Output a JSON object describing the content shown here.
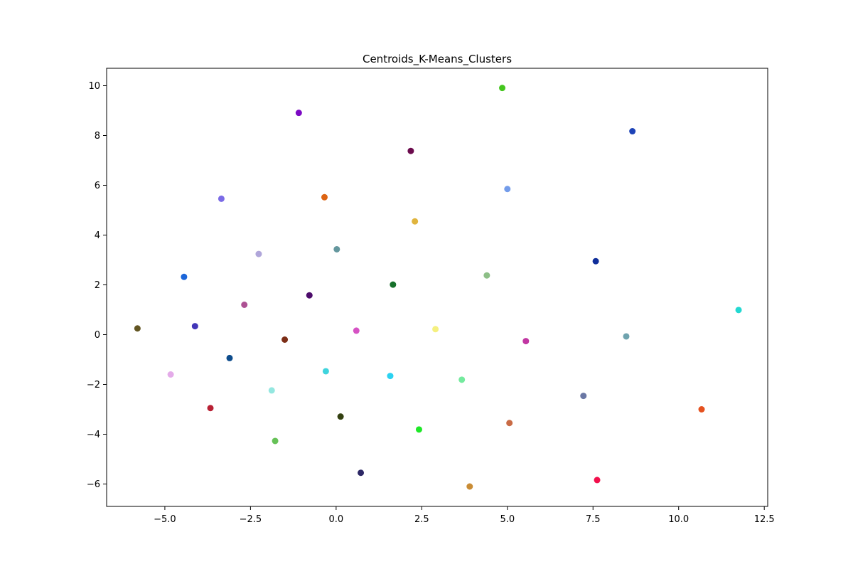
{
  "chart_data": {
    "type": "scatter",
    "title": "Centroids_K-Means_Clusters",
    "xlabel": "",
    "ylabel": "",
    "xlim": [
      -6.7,
      12.6
    ],
    "ylim": [
      -6.9,
      10.7
    ],
    "grid": false,
    "legend": "none",
    "xticks": [
      {
        "value": -5.0,
        "label": "−5.0"
      },
      {
        "value": -2.5,
        "label": "−2.5"
      },
      {
        "value": 0.0,
        "label": "0.0"
      },
      {
        "value": 2.5,
        "label": "2.5"
      },
      {
        "value": 5.0,
        "label": "5.0"
      },
      {
        "value": 7.5,
        "label": "7.5"
      },
      {
        "value": 10.0,
        "label": "10.0"
      },
      {
        "value": 12.5,
        "label": "12.5"
      }
    ],
    "yticks": [
      {
        "value": -6,
        "label": "−6"
      },
      {
        "value": -4,
        "label": "−4"
      },
      {
        "value": -2,
        "label": "−2"
      },
      {
        "value": 0,
        "label": "0"
      },
      {
        "value": 2,
        "label": "2"
      },
      {
        "value": 4,
        "label": "4"
      },
      {
        "value": 6,
        "label": "6"
      },
      {
        "value": 8,
        "label": "8"
      },
      {
        "value": 10,
        "label": "10"
      }
    ],
    "points": [
      {
        "x": 4.85,
        "y": 9.91,
        "color": "#44c61e"
      },
      {
        "x": -1.09,
        "y": 8.91,
        "color": "#7c09c4"
      },
      {
        "x": 8.65,
        "y": 8.17,
        "color": "#1d43b7"
      },
      {
        "x": 2.18,
        "y": 7.38,
        "color": "#6b0b4d"
      },
      {
        "x": 5.0,
        "y": 5.85,
        "color": "#739cea"
      },
      {
        "x": -3.35,
        "y": 5.46,
        "color": "#7b6be6"
      },
      {
        "x": -0.34,
        "y": 5.52,
        "color": "#dd6413"
      },
      {
        "x": 2.3,
        "y": 4.55,
        "color": "#e0b43d"
      },
      {
        "x": 0.02,
        "y": 3.43,
        "color": "#64979e"
      },
      {
        "x": -2.26,
        "y": 3.24,
        "color": "#b0a6da"
      },
      {
        "x": 7.58,
        "y": 2.95,
        "color": "#0f2e9a"
      },
      {
        "x": 4.4,
        "y": 2.38,
        "color": "#8dbf87"
      },
      {
        "x": -4.44,
        "y": 2.32,
        "color": "#1c66d9"
      },
      {
        "x": 1.66,
        "y": 2.01,
        "color": "#16702a"
      },
      {
        "x": -0.78,
        "y": 1.58,
        "color": "#4d0c6b"
      },
      {
        "x": -2.68,
        "y": 1.2,
        "color": "#ad5193"
      },
      {
        "x": 11.75,
        "y": 0.99,
        "color": "#23d8d1"
      },
      {
        "x": -5.8,
        "y": 0.25,
        "color": "#625522"
      },
      {
        "x": -4.12,
        "y": 0.34,
        "color": "#4236b8"
      },
      {
        "x": 0.59,
        "y": 0.16,
        "color": "#d652c4"
      },
      {
        "x": 2.9,
        "y": 0.22,
        "color": "#f5f07f"
      },
      {
        "x": 8.47,
        "y": -0.07,
        "color": "#6fa3ae"
      },
      {
        "x": -1.5,
        "y": -0.2,
        "color": "#7c2e17"
      },
      {
        "x": 5.54,
        "y": -0.26,
        "color": "#c136a2"
      },
      {
        "x": -3.11,
        "y": -0.94,
        "color": "#0d4c8c"
      },
      {
        "x": -0.3,
        "y": -1.47,
        "color": "#3fd4dd"
      },
      {
        "x": -4.83,
        "y": -1.6,
        "color": "#e4abe9"
      },
      {
        "x": 1.58,
        "y": -1.66,
        "color": "#2bd2f1"
      },
      {
        "x": 3.67,
        "y": -1.81,
        "color": "#74ea9e"
      },
      {
        "x": -1.88,
        "y": -2.24,
        "color": "#94e7e0"
      },
      {
        "x": 7.22,
        "y": -2.46,
        "color": "#6a77a4"
      },
      {
        "x": -3.67,
        "y": -2.95,
        "color": "#b82034"
      },
      {
        "x": 10.67,
        "y": -3.0,
        "color": "#e5511f"
      },
      {
        "x": 0.13,
        "y": -3.29,
        "color": "#334010"
      },
      {
        "x": 5.06,
        "y": -3.55,
        "color": "#c96b45"
      },
      {
        "x": 2.42,
        "y": -3.81,
        "color": "#1ee827"
      },
      {
        "x": -1.78,
        "y": -4.27,
        "color": "#66c157"
      },
      {
        "x": 0.72,
        "y": -5.55,
        "color": "#2c2765"
      },
      {
        "x": 7.62,
        "y": -5.84,
        "color": "#f20f4c"
      },
      {
        "x": 3.9,
        "y": -6.1,
        "color": "#c98c35"
      }
    ]
  }
}
